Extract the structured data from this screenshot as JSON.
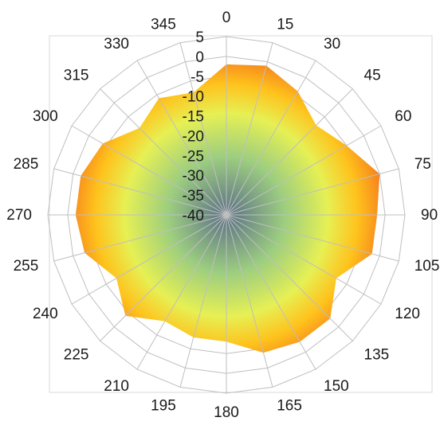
{
  "chart_data": {
    "type": "radar-area",
    "title": "",
    "angle_labels": [
      "0",
      "15",
      "30",
      "45",
      "60",
      "75",
      "90",
      "105",
      "120",
      "135",
      "150",
      "165",
      "180",
      "195",
      "210",
      "225",
      "240",
      "255",
      "270",
      "285",
      "300",
      "315",
      "330",
      "345"
    ],
    "angles": [
      0,
      15,
      30,
      45,
      60,
      75,
      90,
      105,
      120,
      135,
      150,
      165,
      180,
      195,
      210,
      225,
      240,
      255,
      270,
      285,
      300,
      315,
      330,
      345
    ],
    "radial_ticks": [
      "5",
      "0",
      "-5",
      "-10",
      "-15",
      "-20",
      "-25",
      "-30",
      "-35",
      "-40"
    ],
    "r_range": [
      -40,
      5
    ],
    "series": [
      {
        "values": [
          -2,
          -1,
          -4,
          -8,
          -5,
          0,
          -2,
          -2,
          -8,
          -3,
          -3,
          -4,
          -8,
          -8,
          -9,
          -4,
          -8,
          -3,
          -2,
          -2,
          -4,
          -9,
          -6,
          -8
        ]
      }
    ],
    "grid": true,
    "colors": {
      "center": "#5a6f86",
      "mid_inner": "#9ccd80",
      "mid": "#e6f054",
      "mid_outer": "#ffc21c",
      "outer": "#f47a1e",
      "grid": "#bfbfbf",
      "frame": "#d9d9d9"
    }
  }
}
